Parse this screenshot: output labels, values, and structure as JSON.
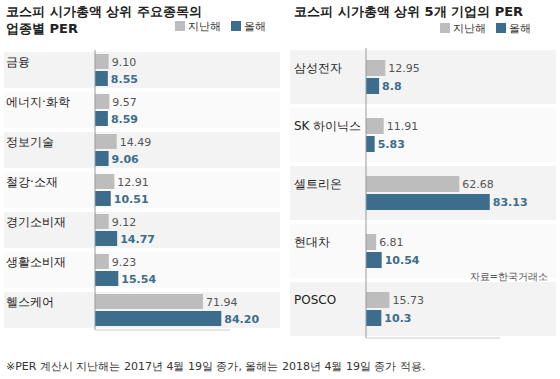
{
  "chart_data": [
    {
      "type": "bar",
      "orientation": "horizontal",
      "title": "코스피 시가총액 상위 주요종목의\n업종별 PER",
      "categories": [
        "금융",
        "에너지·화학",
        "정보기술",
        "철강·소재",
        "경기소비재",
        "생활소비재",
        "헬스케어"
      ],
      "series": [
        {
          "name": "지난해",
          "color": "#bdbdbd",
          "values": [
            9.1,
            9.57,
            14.49,
            12.91,
            9.12,
            9.23,
            71.94
          ],
          "value_labels": [
            "9.10",
            "9.57",
            "14.49",
            "12.91",
            "9.12",
            "9.23",
            "71.94"
          ]
        },
        {
          "name": "올해",
          "color": "#3d6d8c",
          "values": [
            8.55,
            8.59,
            9.06,
            10.51,
            14.77,
            15.54,
            84.2
          ],
          "value_labels": [
            "8.55",
            "8.59",
            "9.06",
            "10.51",
            "14.77",
            "15.54",
            "84.20"
          ]
        }
      ],
      "xlim": [
        0,
        90
      ],
      "tick_labels": false,
      "data_labels": true,
      "legend": "top right",
      "grid": false
    },
    {
      "type": "bar",
      "orientation": "horizontal",
      "title": "코스피 시가총액 상위 5개 기업의 PER",
      "categories": [
        "삼성전자",
        "SK 하이닉스",
        "셀트리온",
        "현대차",
        "POSCO"
      ],
      "series": [
        {
          "name": "지난해",
          "color": "#bdbdbd",
          "values": [
            12.95,
            11.91,
            62.68,
            6.81,
            15.73
          ],
          "value_labels": [
            "12.95",
            "11.91",
            "62.68",
            "6.81",
            "15.73"
          ]
        },
        {
          "name": "올해",
          "color": "#3d6d8c",
          "values": [
            8.8,
            5.83,
            83.13,
            10.54,
            10.3
          ],
          "value_labels": [
            "8.8",
            "5.83",
            "83.13",
            "10.54",
            "10.3"
          ]
        }
      ],
      "xlim": [
        0,
        90
      ],
      "tick_labels": false,
      "data_labels": true,
      "legend": "top right",
      "grid": false,
      "annotations": [
        "자료=한국거래소"
      ]
    }
  ],
  "footnote": "※PER 계산시 지난해는 2017년 4월 19일 종가, 올해는 2018년 4월 19일 종가 적용."
}
